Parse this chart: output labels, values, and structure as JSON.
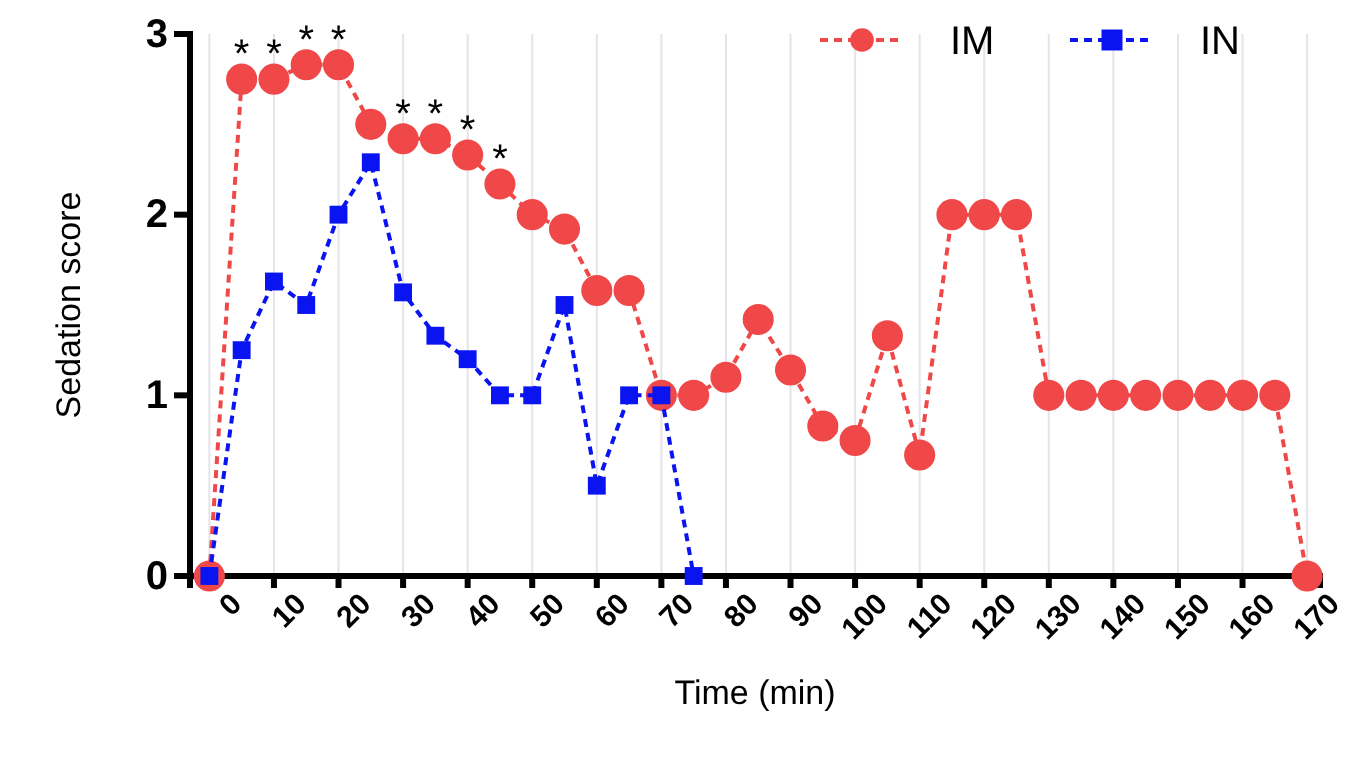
{
  "chart_data": {
    "type": "line",
    "xlabel": "Time (min)",
    "ylabel": "Sedation score",
    "xlim": [
      -3,
      172
    ],
    "ylim": [
      0,
      3
    ],
    "xticks": [
      0,
      10,
      20,
      30,
      40,
      50,
      60,
      70,
      80,
      90,
      100,
      110,
      120,
      130,
      140,
      150,
      160,
      170
    ],
    "yticks": [
      0,
      1,
      2,
      3
    ],
    "grid": "x",
    "legend": "top right",
    "line_style": "dashed",
    "series": [
      {
        "name": "IM",
        "color": "#f04848",
        "marker": "circle",
        "x": [
          0,
          5,
          10,
          15,
          20,
          25,
          30,
          35,
          40,
          45,
          50,
          55,
          60,
          65,
          70,
          75,
          80,
          85,
          90,
          95,
          100,
          105,
          110,
          115,
          120,
          125,
          130,
          135,
          140,
          145,
          150,
          155,
          160,
          165,
          170
        ],
        "values": [
          0,
          2.75,
          2.75,
          2.83,
          2.83,
          2.5,
          2.42,
          2.42,
          2.33,
          2.17,
          2.0,
          1.92,
          1.58,
          1.58,
          1.0,
          1.0,
          1.1,
          1.42,
          1.14,
          0.83,
          0.75,
          1.33,
          0.67,
          2,
          2,
          2,
          1,
          1,
          1,
          1,
          1,
          1,
          1,
          1,
          0
        ]
      },
      {
        "name": "IN",
        "color": "#0a14f0",
        "marker": "square",
        "x": [
          0,
          5,
          10,
          15,
          20,
          25,
          30,
          35,
          40,
          45,
          50,
          55,
          60,
          65,
          70,
          75
        ],
        "values": [
          0,
          1.25,
          1.63,
          1.5,
          2.0,
          2.29,
          1.57,
          1.33,
          1.2,
          1.0,
          1.0,
          1.5,
          0.5,
          1.0,
          1.0,
          0
        ]
      }
    ],
    "annotations": [
      {
        "text": "*",
        "x": 5,
        "y": 2.75
      },
      {
        "text": "*",
        "x": 10,
        "y": 2.75
      },
      {
        "text": "*",
        "x": 15,
        "y": 2.83
      },
      {
        "text": "*",
        "x": 20,
        "y": 2.83
      },
      {
        "text": "*",
        "x": 30,
        "y": 2.42
      },
      {
        "text": "*",
        "x": 35,
        "y": 2.42
      },
      {
        "text": "*",
        "x": 40,
        "y": 2.33
      },
      {
        "text": "*",
        "x": 45,
        "y": 2.17
      }
    ]
  }
}
